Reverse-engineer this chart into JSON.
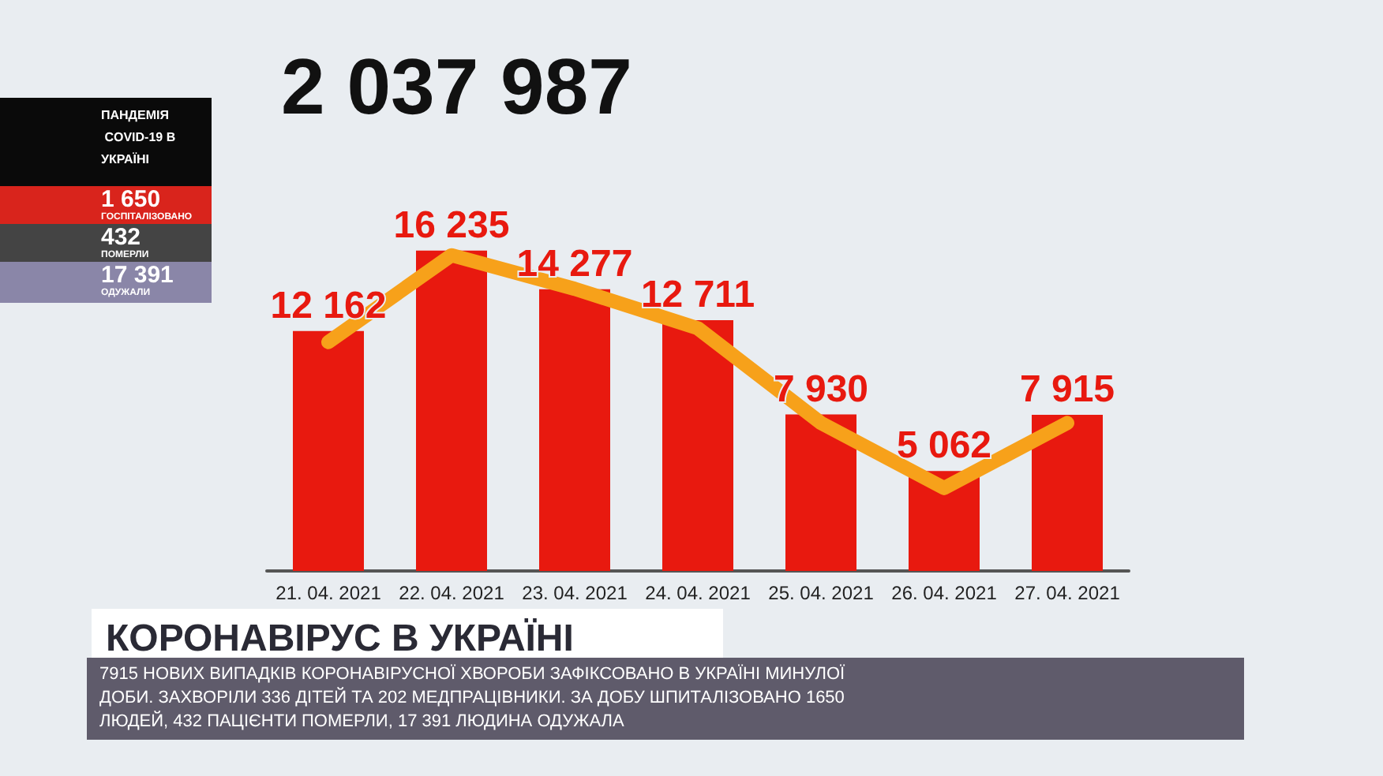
{
  "chart_data": {
    "type": "bar",
    "title": "КОРОНАВІРУС В УКРАЇНІ",
    "categories": [
      "21. 04. 2021",
      "22. 04. 2021",
      "23. 04. 2021",
      "24. 04. 2021",
      "25. 04. 2021",
      "26. 04. 2021",
      "27. 04. 2021"
    ],
    "series": [
      {
        "color": "#e8190f",
        "values": [
          12162,
          16235,
          14277,
          12711,
          7930,
          5062,
          7915
        ],
        "value_labels": [
          "12 162",
          "16 235",
          "14 277",
          "12 711",
          "7 930",
          "5 062",
          "7 915"
        ]
      },
      {
        "type": "line",
        "color": "#f7a11a",
        "values": [
          11600,
          16000,
          14300,
          12300,
          7500,
          4200,
          7500
        ]
      }
    ],
    "annotations": [
      "2 037 987",
      "ПАНДЕМІЯ COVID-19 В УКРАЇНІ",
      "1 650",
      "ГОСПІТАЛІЗОВАНО",
      "432",
      "ПОМЕРЛИ",
      "17 391",
      "ОДУЖАЛИ",
      "7915 НОВИХ ВИПАДКІВ КОРОНАВІРУСНОЇ ХВОРОБИ ЗАФІКСОВАНО В УКРАЇНІ МИНУЛОЇ ДОБИ. ЗАХВОРІЛИ 336 ДІТЕЙ ТА 202 МЕДПРАЦІВНИКИ. ЗА ДОБУ ШПИТАЛІЗОВАНО 1650 ЛЮДЕЙ, 432 ПАЦІЄНТИ ПОМЕРЛИ, 17 391 ЛЮДИНА ОДУЖАЛА"
    ]
  }
}
